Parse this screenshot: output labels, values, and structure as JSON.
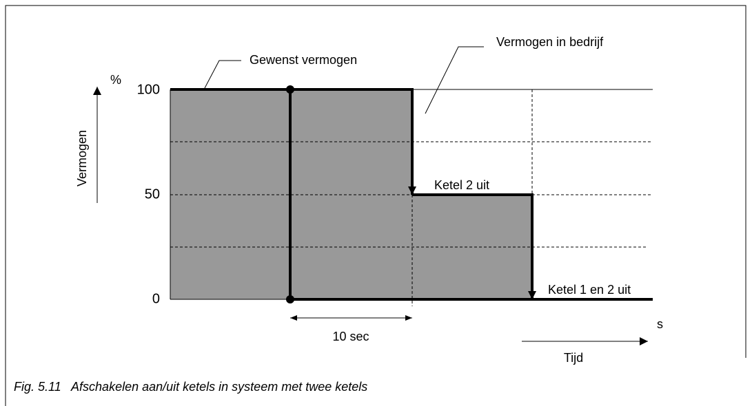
{
  "labels": {
    "percent": "%",
    "tick_100": "100",
    "tick_50": "50",
    "tick_0": "0",
    "y_axis": "Vermogen",
    "x_unit": "s",
    "x_axis": "Tijd",
    "interval": "10 sec"
  },
  "annotations": {
    "desired": "Gewenst vermogen",
    "actual": "Vermogen in bedrijf",
    "step1": "Ketel 2 uit",
    "step2": "Ketel 1 en 2 uit"
  },
  "caption": "Fig. 5.11   Afschakelen aan/uit ketels in systeem met twee ketels"
}
